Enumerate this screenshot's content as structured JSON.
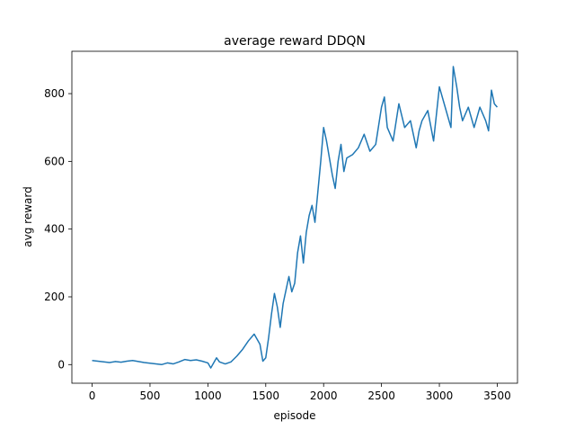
{
  "chart_data": {
    "type": "line",
    "title": "average reward DDQN",
    "xlabel": "episode",
    "ylabel": "avg reward",
    "xlim": [
      -175,
      3675
    ],
    "ylim": [
      -55,
      925
    ],
    "x_ticks": [
      0,
      500,
      1000,
      1500,
      2000,
      2500,
      3000,
      3500
    ],
    "y_ticks": [
      0,
      200,
      400,
      600,
      800
    ],
    "grid": false,
    "colors": {
      "line": "#1f77b4"
    },
    "series": [
      {
        "x": [
          0,
          50,
          100,
          150,
          200,
          250,
          300,
          350,
          400,
          450,
          500,
          550,
          600,
          650,
          700,
          750,
          800,
          850,
          900,
          950,
          1000,
          1025,
          1050,
          1075,
          1100,
          1150,
          1200,
          1250,
          1300,
          1350,
          1400,
          1450,
          1475,
          1500,
          1525,
          1550,
          1575,
          1600,
          1625,
          1650,
          1675,
          1700,
          1725,
          1750,
          1775,
          1800,
          1825,
          1850,
          1875,
          1900,
          1925,
          1950,
          1975,
          2000,
          2025,
          2050,
          2075,
          2100,
          2125,
          2150,
          2175,
          2200,
          2250,
          2300,
          2350,
          2400,
          2450,
          2500,
          2525,
          2550,
          2600,
          2650,
          2700,
          2750,
          2800,
          2825,
          2850,
          2900,
          2950,
          3000,
          3050,
          3100,
          3120,
          3150,
          3175,
          3200,
          3250,
          3300,
          3350,
          3400,
          3425,
          3450,
          3475,
          3500
        ],
        "values": [
          12,
          10,
          8,
          6,
          9,
          7,
          10,
          12,
          9,
          6,
          4,
          2,
          0,
          5,
          2,
          8,
          15,
          12,
          14,
          10,
          5,
          -10,
          5,
          20,
          8,
          2,
          8,
          25,
          45,
          70,
          90,
          60,
          10,
          20,
          80,
          150,
          210,
          170,
          110,
          180,
          220,
          260,
          215,
          240,
          330,
          380,
          300,
          390,
          440,
          470,
          420,
          510,
          600,
          700,
          660,
          610,
          560,
          520,
          600,
          650,
          570,
          610,
          620,
          640,
          680,
          630,
          650,
          760,
          790,
          700,
          660,
          770,
          700,
          720,
          640,
          690,
          720,
          750,
          660,
          820,
          760,
          700,
          880,
          820,
          760,
          720,
          760,
          700,
          760,
          720,
          690,
          810,
          770,
          760
        ]
      }
    ]
  }
}
